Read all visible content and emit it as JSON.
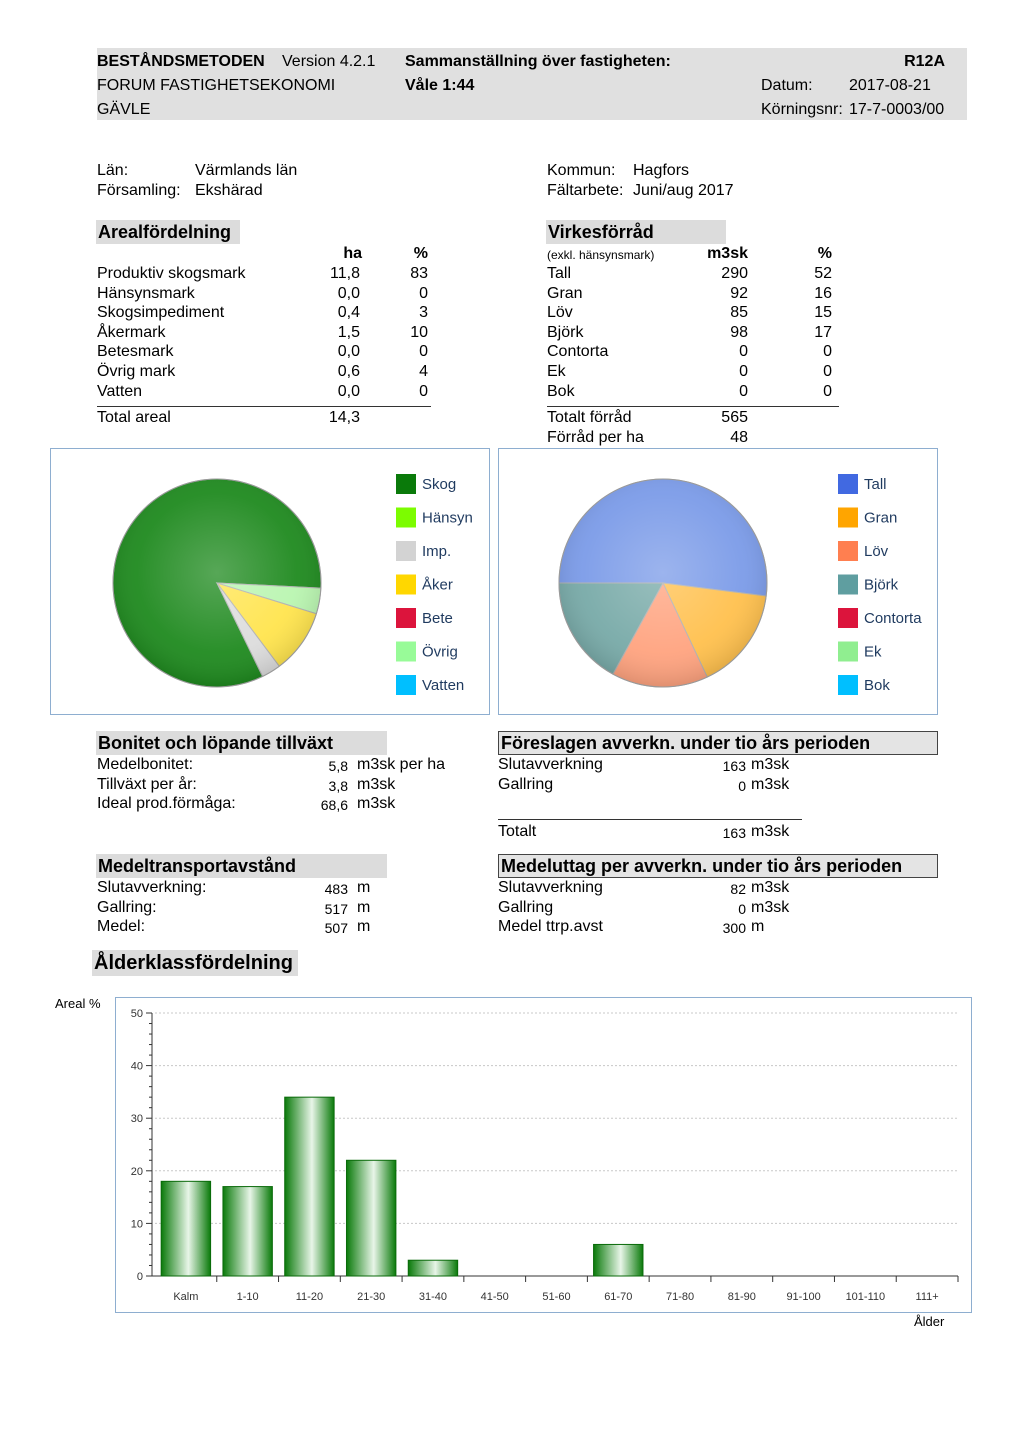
{
  "header": {
    "program": "BESTÅNDSMETODEN",
    "version": "Version 4.2.1",
    "company": "FORUM FASTIGHETSEKONOMI",
    "city": "GÄVLE",
    "title": "Sammanställning över fastigheten:",
    "property": "Våle 1:44",
    "report_code": "R12A",
    "date_label": "Datum:",
    "date": "2017-08-21",
    "run_label": "Körningsnr:",
    "run_no": "17-7-0003/00"
  },
  "location": {
    "lan_label": "Län:",
    "lan": "Värmlands län",
    "forsamling_label": "Församling:",
    "forsamling": "Ekshärad",
    "kommun_label": "Kommun:",
    "kommun": "Hagfors",
    "faltarbete_label": "Fältarbete:",
    "faltarbete": "Juni/aug 2017"
  },
  "areal": {
    "title": "Arealfördelning",
    "col_ha": "ha",
    "col_pct": "%",
    "rows": [
      {
        "label": "Produktiv skogsmark",
        "ha": "11,8",
        "pct": "83"
      },
      {
        "label": "Hänsynsmark",
        "ha": "0,0",
        "pct": "0"
      },
      {
        "label": "Skogsimpediment",
        "ha": "0,4",
        "pct": "3"
      },
      {
        "label": "Åkermark",
        "ha": "1,5",
        "pct": "10"
      },
      {
        "label": "Betesmark",
        "ha": "0,0",
        "pct": "0"
      },
      {
        "label": "Övrig mark",
        "ha": "0,6",
        "pct": "4"
      },
      {
        "label": "Vatten",
        "ha": "0,0",
        "pct": "0"
      }
    ],
    "total_label": "Total areal",
    "total_ha": "14,3"
  },
  "virke": {
    "title": "Virkesförråd",
    "note": "(exkl. hänsynsmark)",
    "col_m3sk": "m3sk",
    "col_pct": "%",
    "rows": [
      {
        "label": "Tall",
        "m3sk": "290",
        "pct": "52"
      },
      {
        "label": "Gran",
        "m3sk": "92",
        "pct": "16"
      },
      {
        "label": "Löv",
        "m3sk": "85",
        "pct": "15"
      },
      {
        "label": "Björk",
        "m3sk": "98",
        "pct": "17"
      },
      {
        "label": "Contorta",
        "m3sk": "0",
        "pct": "0"
      },
      {
        "label": "Ek",
        "m3sk": "0",
        "pct": "0"
      },
      {
        "label": "Bok",
        "m3sk": "0",
        "pct": "0"
      }
    ],
    "total_label": "Totalt förråd",
    "total": "565",
    "per_ha_label": "Förråd per ha",
    "per_ha": "48"
  },
  "pie_areal": {
    "legend": [
      {
        "name": "Skog",
        "color": "#0a7a0a"
      },
      {
        "name": "Hänsyn",
        "color": "#7cfc00"
      },
      {
        "name": "Imp.",
        "color": "#d3d3d3"
      },
      {
        "name": "Åker",
        "color": "#ffd700"
      },
      {
        "name": "Bete",
        "color": "#dc143c"
      },
      {
        "name": "Övrig",
        "color": "#98fb98"
      },
      {
        "name": "Vatten",
        "color": "#00bfff"
      }
    ],
    "values": [
      83,
      0,
      3,
      10,
      0,
      4,
      0
    ],
    "slice_colors": [
      "#1f8a1f",
      "#7cfc00",
      "#dcdcdc",
      "#ffe44d",
      "#dc143c",
      "#b9f5b0",
      "#00bfff"
    ]
  },
  "pie_virke": {
    "legend": [
      {
        "name": "Tall",
        "color": "#4169e1"
      },
      {
        "name": "Gran",
        "color": "#ffa500"
      },
      {
        "name": "Löv",
        "color": "#ff7f50"
      },
      {
        "name": "Björk",
        "color": "#5f9ea0"
      },
      {
        "name": "Contorta",
        "color": "#dc143c"
      },
      {
        "name": "Ek",
        "color": "#90ee90"
      },
      {
        "name": "Bok",
        "color": "#00bfff"
      }
    ],
    "values": [
      52,
      16,
      15,
      17,
      0,
      0,
      0
    ],
    "slice_colors": [
      "#7b9be8",
      "#ffc04d",
      "#ffa37f",
      "#78aaa8",
      "#dc143c",
      "#90ee90",
      "#00bfff"
    ]
  },
  "bonitet": {
    "title": "Bonitet och löpande tillväxt",
    "rows": [
      {
        "label": "Medelbonitet:",
        "value": "5,8",
        "unit": "m3sk per ha"
      },
      {
        "label": "Tillväxt per år:",
        "value": "3,8",
        "unit": "m3sk"
      },
      {
        "label": "Ideal prod.förmåga:",
        "value": "68,6",
        "unit": "m3sk"
      }
    ]
  },
  "foreslagen": {
    "title": "Föreslagen avverkn. under tio års perioden",
    "rows": [
      {
        "label": "Slutavverkning",
        "value": "163",
        "unit": "m3sk"
      },
      {
        "label": "Gallring",
        "value": "0",
        "unit": "m3sk"
      }
    ],
    "total_label": "Totalt",
    "total": "163",
    "total_unit": "m3sk"
  },
  "transport": {
    "title": "Medeltransportavstånd",
    "rows": [
      {
        "label": "Slutavverkning:",
        "value": "483",
        "unit": "m"
      },
      {
        "label": "Gallring:",
        "value": "517",
        "unit": "m"
      },
      {
        "label": "Medel:",
        "value": "507",
        "unit": "m"
      }
    ]
  },
  "medeluttag": {
    "title": "Medeluttag per avverkn. under tio års perioden",
    "rows": [
      {
        "label": "Slutavverkning",
        "value": "82",
        "unit": "m3sk"
      },
      {
        "label": "Gallring",
        "value": "0",
        "unit": "m3sk"
      },
      {
        "label": "Medel ttrp.avst",
        "value": "300",
        "unit": "m"
      }
    ]
  },
  "alder": {
    "title": "Ålderklassfördelning"
  },
  "chart_data": {
    "type": "bar",
    "categories": [
      "Kalm",
      "1-10",
      "11-20",
      "21-30",
      "31-40",
      "41-50",
      "51-60",
      "61-70",
      "71-80",
      "81-90",
      "91-100",
      "101-110",
      "111+"
    ],
    "values": [
      18,
      17,
      34,
      22,
      3,
      0,
      0,
      6,
      0,
      0,
      0,
      0,
      0
    ],
    "ylabel": "Areal %",
    "xlabel": "Ålder",
    "ylim": [
      0,
      50
    ],
    "yticks": [
      0,
      10,
      20,
      30,
      40,
      50
    ],
    "grid": true,
    "bar_color": "#0a7a0a"
  }
}
